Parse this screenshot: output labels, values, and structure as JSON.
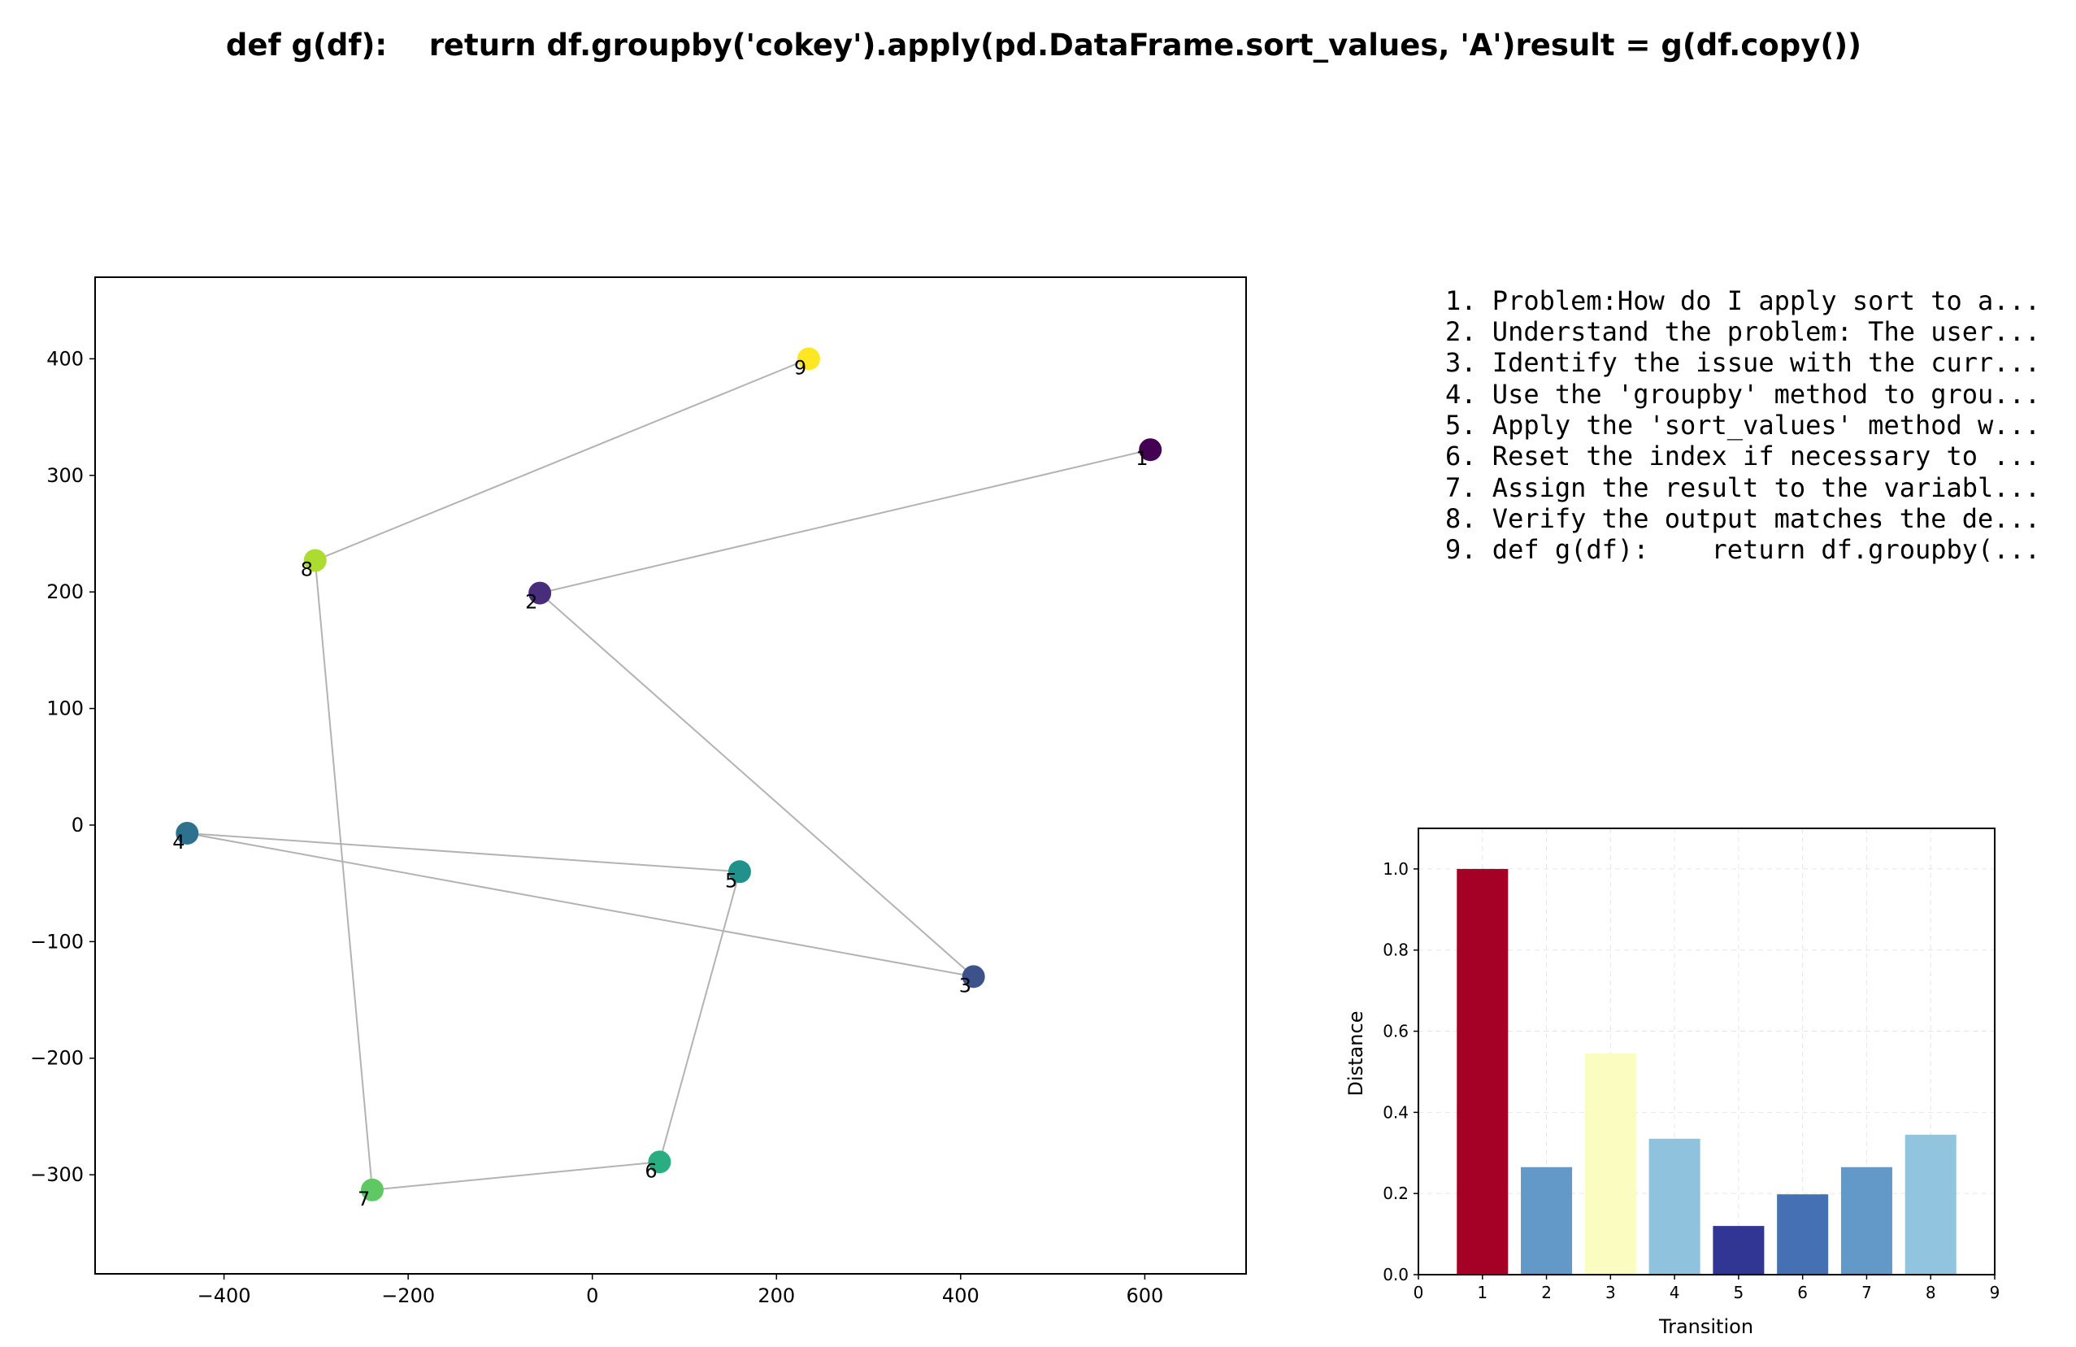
{
  "figure": {
    "title": "def g(df):    return df.groupby('cokey').apply(pd.DataFrame.sort_values, 'A')result = g(df.copy())"
  },
  "steps": [
    "1. Problem:How do I apply sort to a...",
    "2. Understand the problem: The user...",
    "3. Identify the issue with the curr...",
    "4. Use the 'groupby' method to grou...",
    "5. Apply the 'sort_values' method w...",
    "6. Reset the index if necessary to ...",
    "7. Assign the result to the variabl...",
    "8. Verify the output matches the de...",
    "9. def g(df):    return df.groupby(..."
  ],
  "chart_data": [
    {
      "type": "scatter",
      "title": "",
      "xlabel": "",
      "ylabel": "",
      "xlim": [
        -540,
        710
      ],
      "ylim": [
        -385,
        470
      ],
      "xticks": [
        -400,
        -200,
        0,
        200,
        400,
        600
      ],
      "xtick_labels": [
        "−400",
        "−200",
        "0",
        "200",
        "400",
        "600"
      ],
      "yticks": [
        -300,
        -200,
        -100,
        0,
        100,
        200,
        300,
        400
      ],
      "ytick_labels": [
        "−300",
        "−200",
        "−100",
        "0",
        "100",
        "200",
        "300",
        "400"
      ],
      "grid": false,
      "connected": true,
      "line_color": "#b3b3b3",
      "colormap": "viridis",
      "points": [
        {
          "label": "1",
          "x": 606,
          "y": 322,
          "color": "#440154"
        },
        {
          "label": "2",
          "x": -57,
          "y": 199,
          "color": "#472d7b"
        },
        {
          "label": "3",
          "x": 414,
          "y": -130,
          "color": "#3b528b"
        },
        {
          "label": "4",
          "x": -440,
          "y": -7,
          "color": "#2c728e"
        },
        {
          "label": "5",
          "x": 160,
          "y": -40,
          "color": "#21918c"
        },
        {
          "label": "6",
          "x": 73,
          "y": -289,
          "color": "#28ae80"
        },
        {
          "label": "7",
          "x": -239,
          "y": -313,
          "color": "#5ec962"
        },
        {
          "label": "8",
          "x": -301,
          "y": 227,
          "color": "#addc30"
        },
        {
          "label": "9",
          "x": 235,
          "y": 400,
          "color": "#fde725"
        }
      ]
    },
    {
      "type": "bar",
      "title": "",
      "xlabel": "Transition",
      "ylabel": "Distance",
      "xlim": [
        0,
        9
      ],
      "ylim": [
        0,
        1.1
      ],
      "xticks": [
        0,
        1,
        2,
        3,
        4,
        5,
        6,
        7,
        8,
        9
      ],
      "xtick_labels": [
        "0",
        "1",
        "2",
        "3",
        "4",
        "5",
        "6",
        "7",
        "8",
        "9"
      ],
      "yticks": [
        0,
        0.2,
        0.4,
        0.6,
        0.8,
        1.0
      ],
      "ytick_labels": [
        "0.0",
        "0.2",
        "0.4",
        "0.6",
        "0.8",
        "1.0"
      ],
      "grid": true,
      "categories": [
        1,
        2,
        3,
        4,
        5,
        6,
        7,
        8
      ],
      "values": [
        1.0,
        0.265,
        0.545,
        0.335,
        0.12,
        0.198,
        0.265,
        0.345
      ],
      "colors": [
        "#a50026",
        "#6399c8",
        "#fafcc0",
        "#8fc2dd",
        "#313695",
        "#4571b4",
        "#6399c8",
        "#91c4de"
      ]
    }
  ]
}
